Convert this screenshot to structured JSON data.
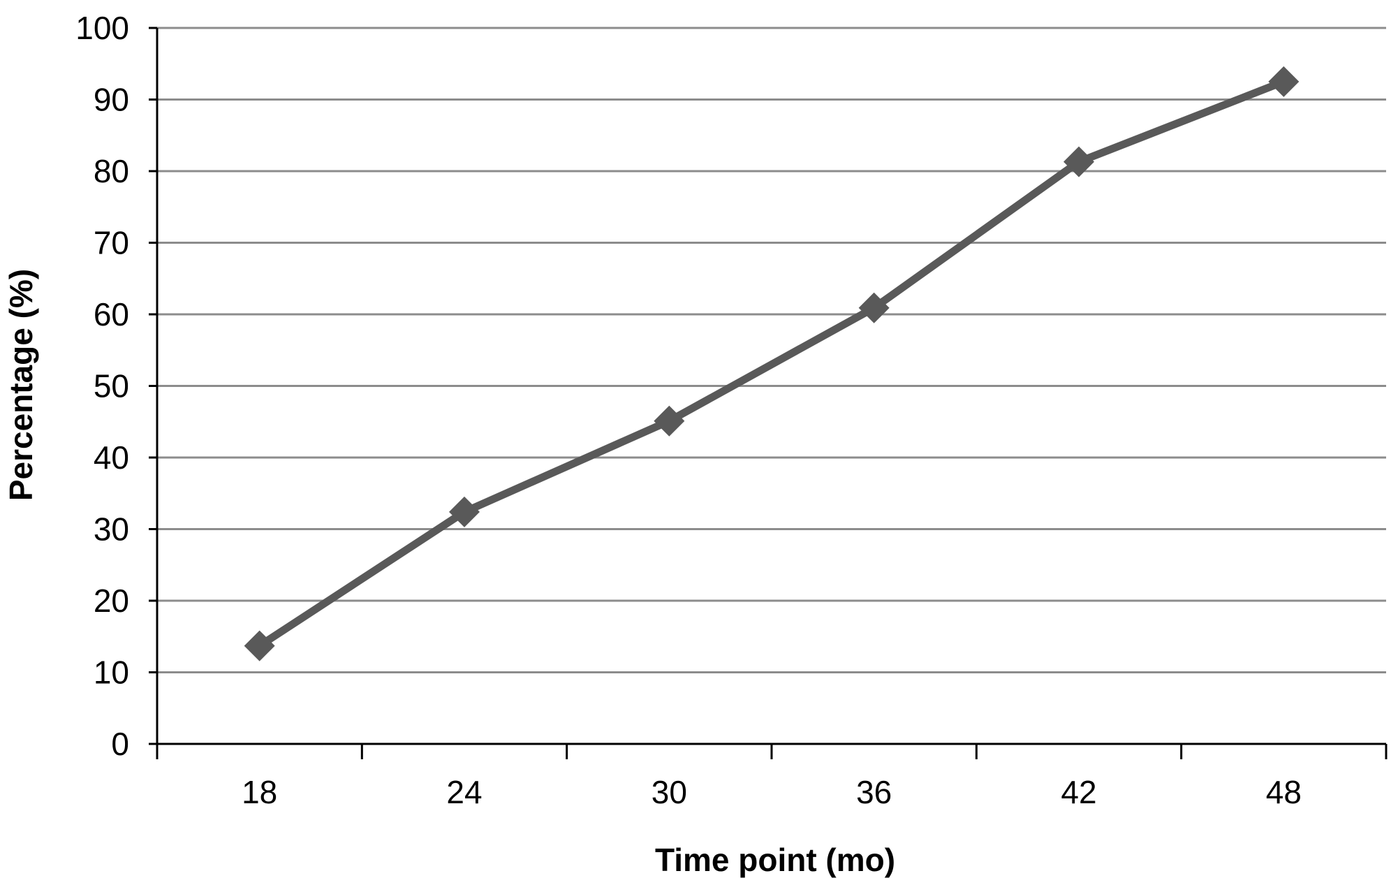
{
  "chart_data": {
    "type": "line",
    "title": "",
    "xlabel": "Time point (mo)",
    "ylabel": "Percentage (%)",
    "categories": [
      "18",
      "24",
      "30",
      "36",
      "42",
      "48"
    ],
    "series": [
      {
        "values": [
          13.7,
          32.4,
          45.1,
          60.9,
          81.3,
          92.5
        ],
        "color": "#595959",
        "marker": "diamond"
      }
    ],
    "ylim": [
      0,
      100
    ],
    "yticks": [
      0,
      10,
      20,
      30,
      40,
      50,
      60,
      70,
      80,
      90,
      100
    ],
    "grid": true,
    "gridlines": "horizontal",
    "legend": "none",
    "colors": {
      "line": "#595959",
      "grid": "#8c8c8c",
      "axis": "#000000",
      "background": "#ffffff"
    }
  }
}
